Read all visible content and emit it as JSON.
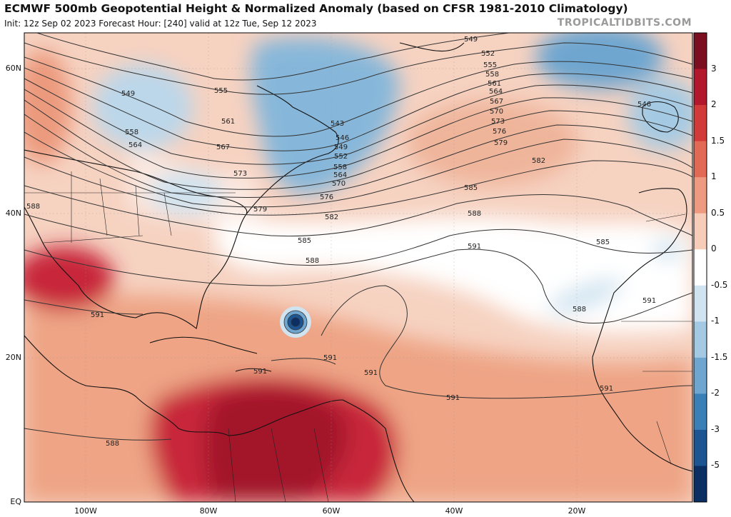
{
  "header": {
    "title": "ECMWF 500mb Geopotential Height & Normalized Anomaly (based on CFSR 1981-2010 Climatology)",
    "subtitle": "Init: 12z Sep 02 2023   Forecast Hour: [240]   valid at 12z Tue, Sep 12 2023",
    "credit": "TROPICALTIDBITS.COM"
  },
  "axes": {
    "lat_labels": [
      "60N",
      "40N",
      "20N",
      "EQ"
    ],
    "lon_labels": [
      "100W",
      "80W",
      "60W",
      "40W",
      "20W"
    ]
  },
  "colorbar": {
    "ticks": [
      "3",
      "2",
      "1.5",
      "1",
      "0.5",
      "0",
      "-0.5",
      "-1",
      "-1.5",
      "-2",
      "-3",
      "-5"
    ],
    "colors": [
      "#7b0f1f",
      "#b3172b",
      "#d23a3a",
      "#e26a55",
      "#ee9a80",
      "#f7ccb8",
      "#ffffff",
      "#cfe3f0",
      "#a4cae3",
      "#6ea6d0",
      "#3a7fb6",
      "#1c5592",
      "#0c2f63"
    ]
  },
  "contour_labels": [
    "549",
    "552",
    "555",
    "558",
    "561",
    "564",
    "567",
    "570",
    "573",
    "576",
    "579",
    "582",
    "585",
    "588",
    "591",
    "549",
    "555",
    "558",
    "564",
    "561",
    "567",
    "573",
    "576",
    "579",
    "582",
    "585",
    "588",
    "591",
    "543",
    "546",
    "549",
    "552",
    "558",
    "564",
    "570",
    "546",
    "585",
    "588",
    "591",
    "591",
    "591",
    "591",
    "591",
    "591",
    "588",
    "588"
  ]
}
